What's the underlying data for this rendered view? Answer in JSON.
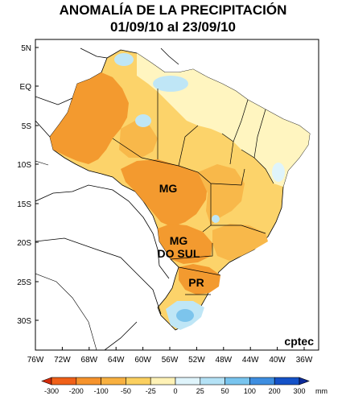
{
  "title": {
    "line1": "ANOMALÍA DE LA PRECIPITACIÓN",
    "line2": "01/09/10 al 23/09/10"
  },
  "axes": {
    "lat_labels": [
      "5N",
      "EQ",
      "5S",
      "10S",
      "15S",
      "20S",
      "25S",
      "30S"
    ],
    "lon_labels": [
      "76W",
      "72W",
      "68W",
      "64W",
      "60W",
      "56W",
      "52W",
      "48W",
      "44W",
      "40W",
      "36W"
    ]
  },
  "map_labels": {
    "mg": "MG",
    "mg_do_sul": "MG\nDO SUL",
    "mg_do_sul_line1": "MG",
    "mg_do_sul_line2": "DO SUL",
    "pr": "PR"
  },
  "credit": "cptec",
  "legend": {
    "ticks": [
      "-300",
      "-200",
      "-100",
      "-50",
      "-25",
      "0",
      "25",
      "50",
      "100",
      "200",
      "300"
    ],
    "unit": "mm",
    "colors": [
      "#d42a0a",
      "#f06018",
      "#f6932c",
      "#f8b040",
      "#fbd060",
      "#fff2b6",
      "#dff4fb",
      "#b4e2f6",
      "#78c4ee",
      "#3e8ee0",
      "#1452c8",
      "#0c2a9a"
    ]
  },
  "colors": {
    "strong_dry": "#f39a2f",
    "dry": "#f8b84a",
    "mild_dry": "#fcd36a",
    "near_zero": "#fff5c0",
    "wet": "#bfe6f6",
    "wetter": "#7cc4ec",
    "land_outline": "#000000"
  }
}
